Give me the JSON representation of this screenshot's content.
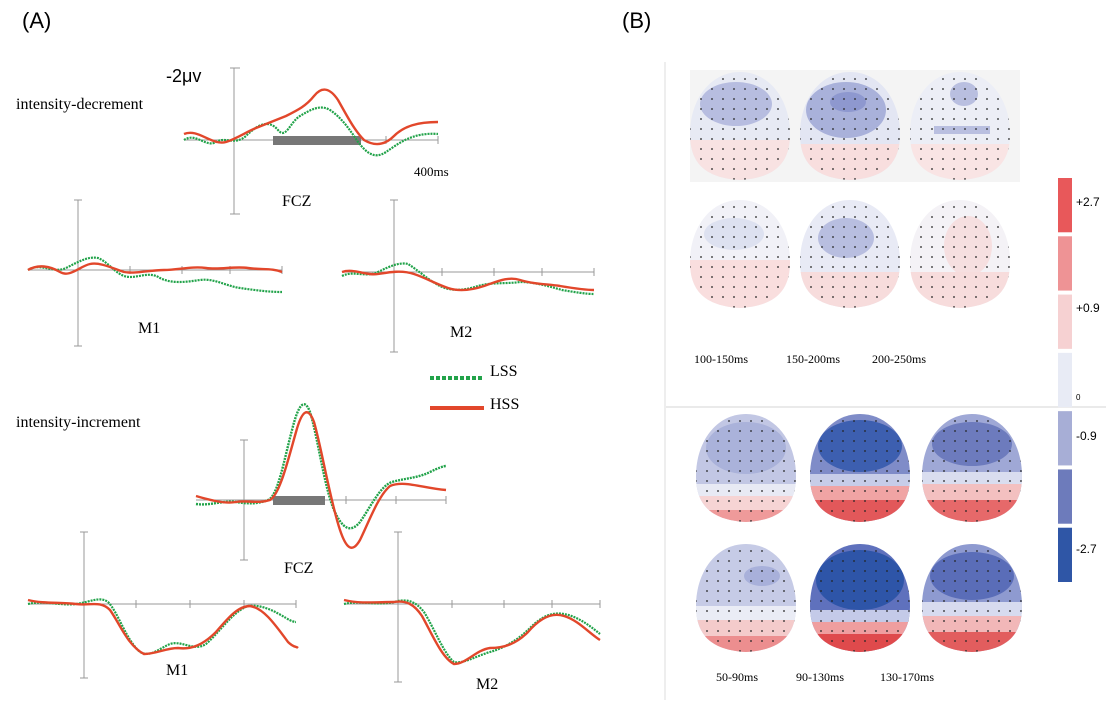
{
  "panels": {
    "a_label": "(A)",
    "b_label": "(B)"
  },
  "panel_a": {
    "top_condition": "intensity-decrement",
    "bottom_condition": "intensity-increment",
    "amplitude_scale": "-2μv",
    "time_scale": "400ms",
    "electrodes": {
      "fcz": "FCZ",
      "m1": "M1",
      "m2": "M2"
    },
    "legend": {
      "lss": "LSS",
      "hss": "HSS"
    },
    "colors": {
      "lss": "#22a34a",
      "hss": "#e2472b"
    }
  },
  "panel_b": {
    "top_windows": [
      "100-150ms",
      "150-200ms",
      "200-250ms"
    ],
    "bottom_windows": [
      "50-90ms",
      "90-130ms",
      "130-170ms"
    ],
    "colorbar": {
      "ticks": [
        "+2.7",
        "+0.9",
        "0",
        "-0.9",
        "-2.7"
      ],
      "colors": [
        "#e8585a",
        "#ee9395",
        "#f6d1d2",
        "#e8ebf5",
        "#a7aed6",
        "#6d7bbb",
        "#2f56a6"
      ]
    }
  }
}
